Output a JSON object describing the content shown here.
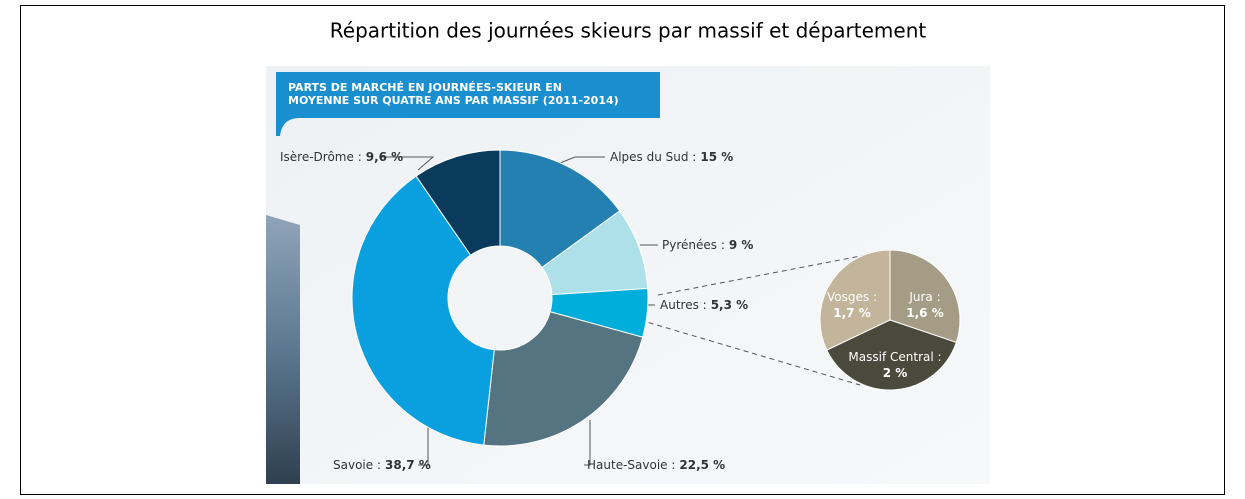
{
  "title": "Répartition des journées skieurs par massif et département",
  "chart_data": [
    {
      "type": "donut",
      "title": "PARTS DE MARCHÉ EN JOURNÉES-SKIEUR EN MOYENNE SUR QUATRE ANS PAR MASSIF (2011-2014)",
      "categories": [
        "Alpes du Sud :",
        "Pyrénées :",
        "Autres :",
        "Haute-Savoie :",
        "Savoie :",
        "Isère-Drôme :"
      ],
      "values": [
        15,
        9,
        5.3,
        22.5,
        38.7,
        9.6
      ],
      "value_labels": [
        "15 %",
        "9 %",
        "5,3 %",
        "22,5 %",
        "38,7 %",
        "9,6 %"
      ],
      "colors": [
        "#2380b0",
        "#aee0ea",
        "#00aedb",
        "#537480",
        "#0aa0e0",
        "#0a3a5c"
      ]
    },
    {
      "type": "pie",
      "categories": [
        "Jura :",
        "Massif Central :",
        "Vosges :"
      ],
      "values": [
        1.6,
        2,
        1.7
      ],
      "value_labels": [
        "1,6 %",
        "2 %",
        "1,7 %"
      ],
      "colors": [
        "#a59c85",
        "#4a4a3c",
        "#c2b59c"
      ]
    }
  ]
}
